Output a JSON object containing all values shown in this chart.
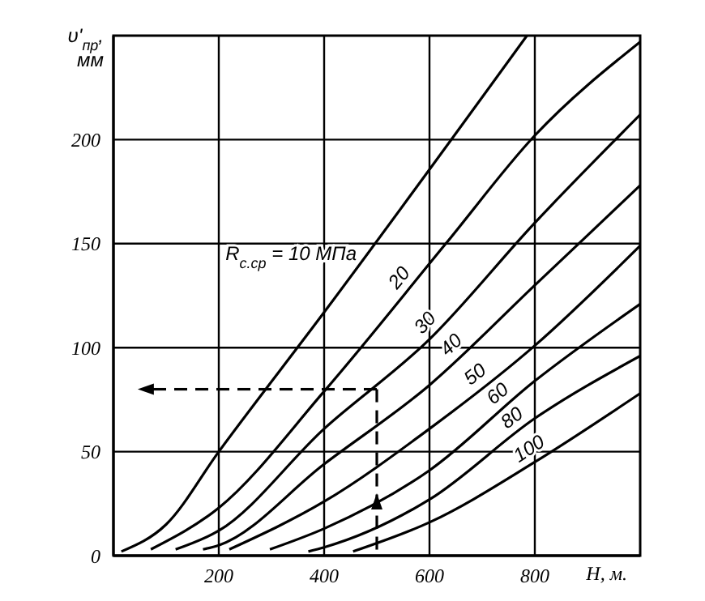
{
  "chart_data": {
    "type": "line",
    "xlabel": "H, м.",
    "ylabel": "υ'$_{пр}$, мм",
    "xlim": [
      0,
      1000
    ],
    "ylim": [
      0,
      250
    ],
    "xticks": [
      200,
      400,
      600,
      800
    ],
    "yticks": [
      0,
      50,
      100,
      150,
      200
    ],
    "grid": true,
    "marker": "none",
    "line_style": "solid",
    "series": [
      {
        "name": "R$_{с.ср}$ = 10 МПа",
        "color": "#000000",
        "x": [
          15,
          100,
          200,
          400,
          785
        ],
        "values": [
          2,
          15,
          50,
          117,
          250
        ]
      },
      {
        "name": "20",
        "color": "#000000",
        "x": [
          71,
          200,
          400,
          631,
          800,
          1000
        ],
        "values": [
          3,
          23,
          79,
          150,
          202,
          247
        ]
      },
      {
        "name": "30",
        "color": "#000000",
        "x": [
          118,
          200,
          400,
          600,
          800,
          1000
        ],
        "values": [
          3,
          12,
          61,
          104,
          160,
          212
        ]
      },
      {
        "name": "40",
        "color": "#000000",
        "x": [
          170,
          200,
          400,
          600,
          800,
          1000
        ],
        "values": [
          3,
          5,
          44,
          82,
          130,
          178
        ]
      },
      {
        "name": "50",
        "color": "#000000",
        "x": [
          220,
          400,
          600,
          800,
          1000
        ],
        "values": [
          3,
          26,
          61,
          101,
          149
        ]
      },
      {
        "name": "60",
        "color": "#000000",
        "x": [
          297,
          400,
          600,
          800,
          1000
        ],
        "values": [
          3,
          13,
          41,
          84,
          121
        ]
      },
      {
        "name": "80",
        "color": "#000000",
        "x": [
          370,
          400,
          600,
          800,
          1000
        ],
        "values": [
          2,
          4,
          27,
          66,
          96
        ]
      },
      {
        "name": "100",
        "color": "#000000",
        "x": [
          455,
          600,
          800,
          1000
        ],
        "values": [
          2,
          16,
          45,
          78
        ]
      }
    ]
  }
}
